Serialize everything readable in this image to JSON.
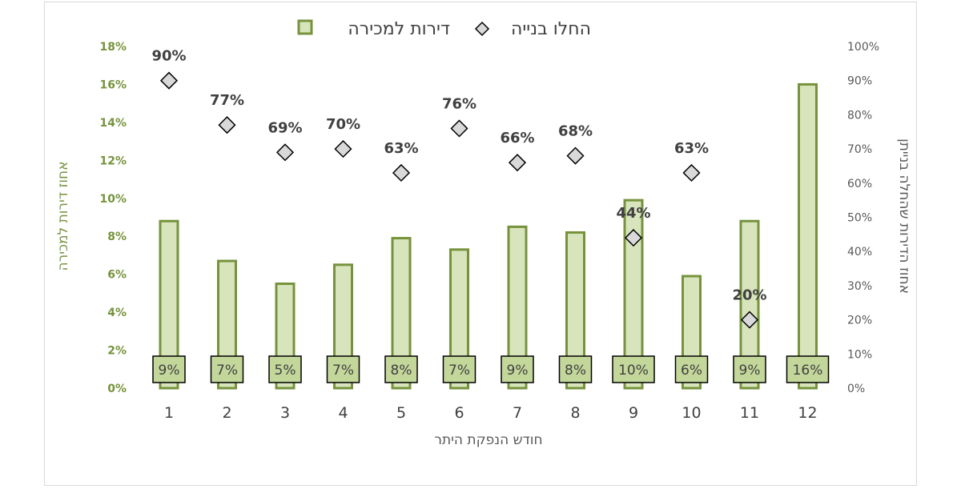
{
  "chart_data": {
    "type": "bar",
    "categories": [
      "1",
      "2",
      "3",
      "4",
      "5",
      "6",
      "7",
      "8",
      "9",
      "10",
      "11",
      "12"
    ],
    "series": [
      {
        "name": "דירות למכירה",
        "type": "bar",
        "axis": "left",
        "values": [
          8.8,
          6.7,
          5.5,
          6.5,
          7.9,
          7.3,
          8.5,
          8.2,
          9.9,
          5.9,
          8.8,
          16.0
        ],
        "labels": [
          "9%",
          "7%",
          "5%",
          "7%",
          "8%",
          "7%",
          "9%",
          "8%",
          "10%",
          "6%",
          "9%",
          "16%"
        ]
      },
      {
        "name": "החלו בנייה",
        "type": "scatter",
        "axis": "right",
        "values": [
          90,
          77,
          69,
          70,
          63,
          76,
          66,
          68,
          44,
          63,
          20,
          null
        ],
        "labels": [
          "90%",
          "77%",
          "69%",
          "70%",
          "63%",
          "76%",
          "66%",
          "68%",
          "44%",
          "63%",
          "20%",
          ""
        ]
      }
    ],
    "xlabel": "חודש הנפקת היתר",
    "ylabel_left": "אחוז דירות למכירה",
    "ylabel_right": "אחוז הדירות שהחלה בנייתן",
    "ylim_left": [
      0,
      18
    ],
    "ylim_right": [
      0,
      100
    ],
    "yticks_left": [
      "0%",
      "2%",
      "4%",
      "6%",
      "8%",
      "10%",
      "12%",
      "14%",
      "16%",
      "18%"
    ],
    "yticks_right": [
      "0%",
      "10%",
      "20%",
      "30%",
      "40%",
      "50%",
      "60%",
      "70%",
      "80%",
      "90%",
      "100%"
    ],
    "legend_position": "top",
    "grid": false,
    "colors": {
      "bar_fill": "#d8e4bc",
      "bar_stroke": "#76933c",
      "marker_fill": "#d9d9d9",
      "marker_stroke": "#000000",
      "label_box_fill": "#c4d79b",
      "left_axis_color": "#76933c"
    }
  }
}
